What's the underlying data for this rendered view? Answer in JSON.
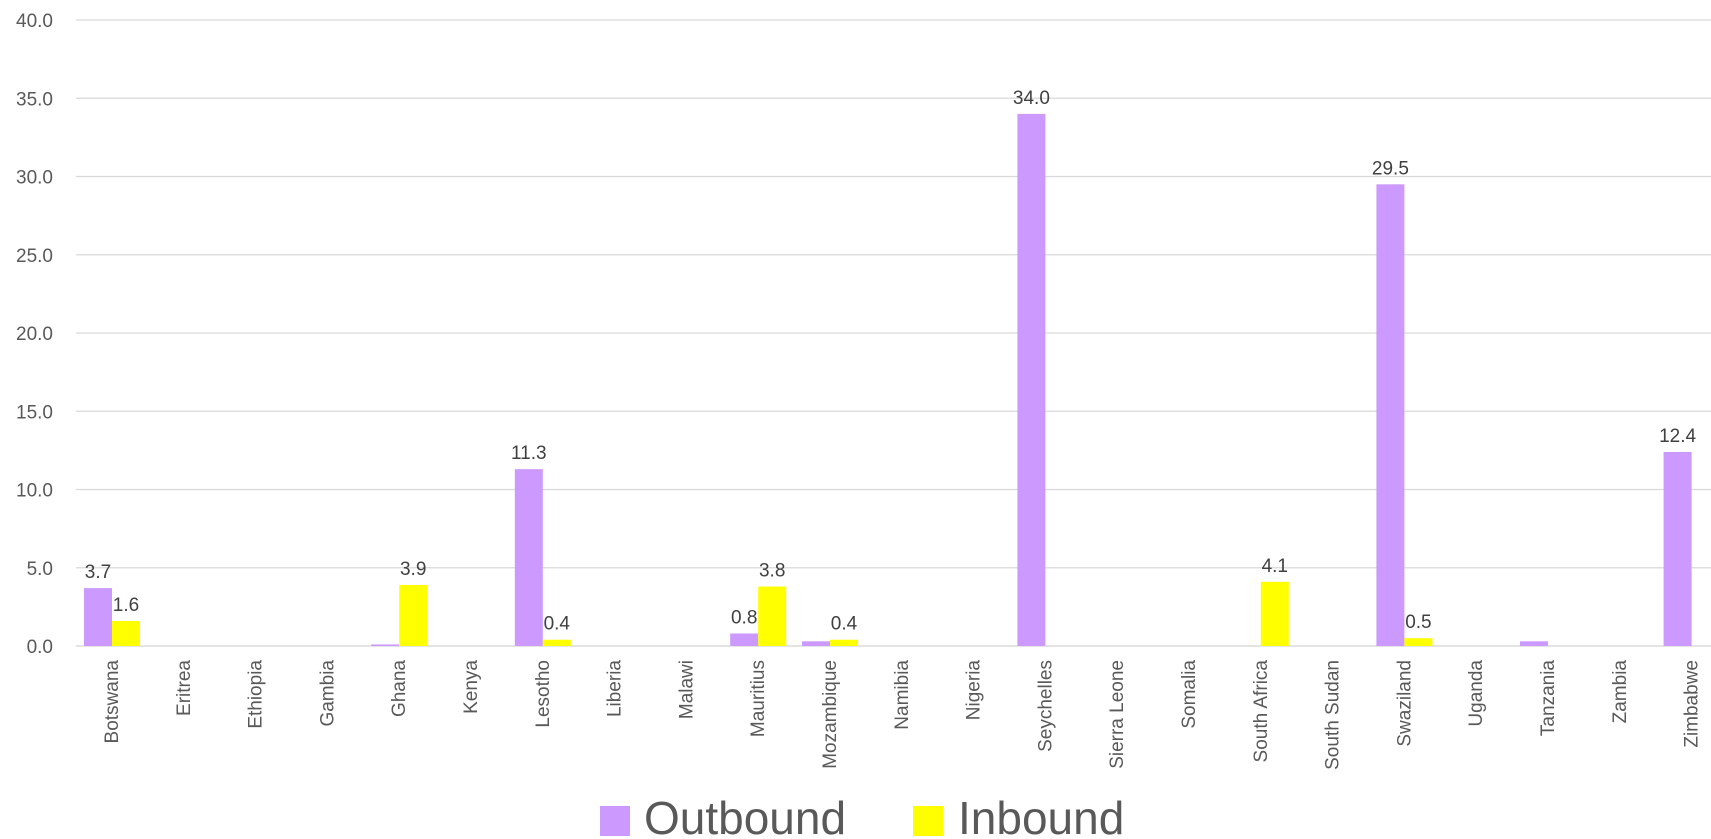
{
  "chart_data": {
    "type": "bar",
    "categories": [
      "Botswana",
      "Eritrea",
      "Ethiopia",
      "Gambia",
      "Ghana",
      "Kenya",
      "Lesotho",
      "Liberia",
      "Malawi",
      "Mauritius",
      "Mozambique",
      "Namibia",
      "Nigeria",
      "Seychelles",
      "Sierra Leone",
      "Somalia",
      "South Africa",
      "South Sudan",
      "Swaziland",
      "Uganda",
      "Tanzania",
      "Zambia",
      "Zimbabwe"
    ],
    "series": [
      {
        "name": "Outbound",
        "color": "#cc99ff",
        "values": [
          3.7,
          0,
          0,
          0,
          0.1,
          0,
          11.3,
          0,
          0,
          0.8,
          0.3,
          0,
          0,
          34.0,
          0,
          0,
          0,
          0,
          29.5,
          0,
          0.3,
          0,
          12.4
        ],
        "labels": [
          "3.7",
          "",
          "",
          "",
          "",
          "",
          "11.3",
          "",
          "",
          "0.8",
          "",
          "",
          "",
          "34.0",
          "",
          "",
          "",
          "",
          "29.5",
          "",
          "",
          "",
          "12.4"
        ]
      },
      {
        "name": "Inbound",
        "color": "#ffff00",
        "values": [
          1.6,
          0,
          0,
          0,
          3.9,
          0,
          0.4,
          0,
          0,
          3.8,
          0.4,
          0,
          0,
          0,
          0,
          0,
          4.1,
          0,
          0.5,
          0,
          0,
          0,
          0
        ],
        "labels": [
          "1.6",
          "",
          "",
          "",
          "3.9",
          "",
          "0.4",
          "",
          "",
          "3.8",
          "0.4",
          "",
          "",
          "",
          "",
          "",
          "4.1",
          "",
          "0.5",
          "",
          "",
          "",
          ""
        ]
      }
    ],
    "yticks": [
      "0.0",
      "5.0",
      "10.0",
      "15.0",
      "20.0",
      "25.0",
      "30.0",
      "35.0",
      "40.0"
    ],
    "ylim": [
      0,
      40
    ],
    "grid": true,
    "legend_position": "bottom"
  }
}
